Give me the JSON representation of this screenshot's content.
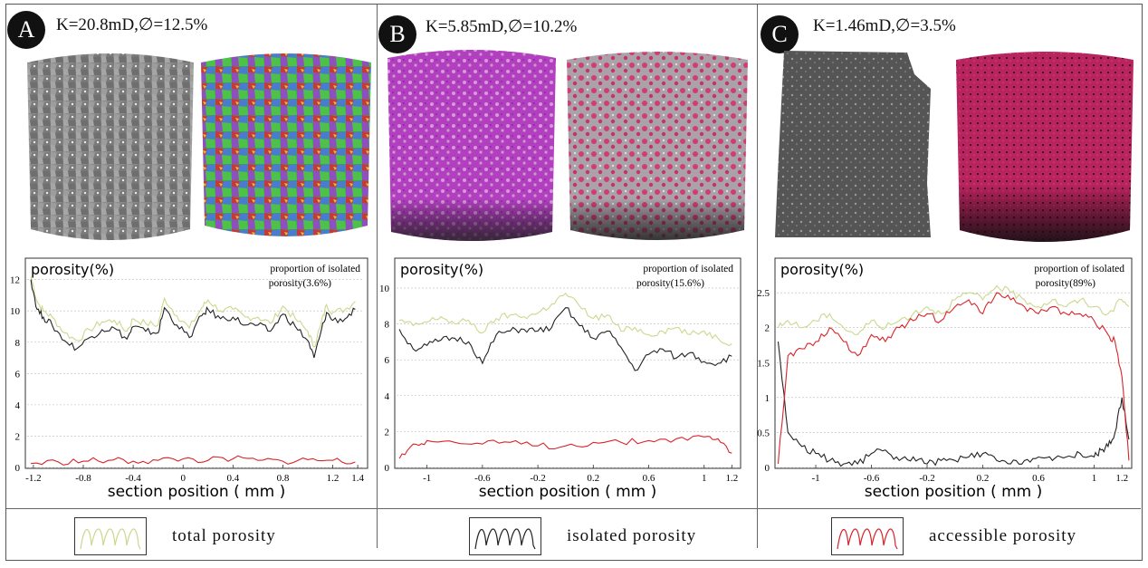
{
  "panels": [
    {
      "id": "A",
      "badge": "A",
      "title": "K=20.8mD,∅=12.5%"
    },
    {
      "id": "B",
      "badge": "B",
      "title": "K=5.85mD,∅=10.2%"
    },
    {
      "id": "C",
      "badge": "C",
      "title": "K=1.46mD,∅=3.5%"
    }
  ],
  "legend": [
    {
      "label": "total porosity",
      "color": "#c9d98e"
    },
    {
      "label": "isolated porosity",
      "color": "#222222"
    },
    {
      "label": "accessible porosity",
      "color": "#d9232a"
    }
  ],
  "colors": {
    "total": "#c9d98e",
    "isolated": "#222222",
    "accessible": "#d9232a"
  },
  "chart_data": [
    {
      "type": "line",
      "ylabel": "porosity(%)",
      "xlabel": "section position ( mm )",
      "annotation_line1": "proportion of isolated",
      "annotation_line2": "porosity(3.6%)",
      "xlim": [
        -1.25,
        1.45
      ],
      "ylim": [
        0,
        12.5
      ],
      "xticks": [
        -1.2,
        -0.8,
        -0.4,
        0,
        0.4,
        0.8,
        1.2,
        1.4
      ],
      "xtick_labels": [
        "-1.2",
        "-0.8",
        "-0.4",
        "0",
        "0.4",
        "0.8",
        "1.2",
        "1.4"
      ],
      "yticks": [
        0,
        2,
        4,
        6,
        8,
        10,
        12
      ],
      "ytick_labels": [
        "0",
        "2",
        "4",
        "6",
        "8",
        "10",
        "12"
      ],
      "series": [
        {
          "name": "total porosity",
          "key": "total",
          "x": [
            -1.22,
            -1.17,
            -1.12,
            -1.05,
            -0.95,
            -0.85,
            -0.75,
            -0.65,
            -0.55,
            -0.45,
            -0.4,
            -0.3,
            -0.2,
            -0.15,
            -0.05,
            0.05,
            0.15,
            0.2,
            0.3,
            0.4,
            0.5,
            0.6,
            0.7,
            0.8,
            0.9,
            1.0,
            1.05,
            1.1,
            1.15,
            1.2,
            1.3,
            1.38
          ],
          "y": [
            12.2,
            10.6,
            10.0,
            9.6,
            8.6,
            8.1,
            8.8,
            9.3,
            9.4,
            8.7,
            9.5,
            9.2,
            9.1,
            10.8,
            9.7,
            8.9,
            10.2,
            10.7,
            10.0,
            10.1,
            9.6,
            9.6,
            9.2,
            10.3,
            9.5,
            8.7,
            7.7,
            9.0,
            10.4,
            9.9,
            10.1,
            10.6
          ]
        },
        {
          "name": "isolated porosity",
          "key": "isolated",
          "x": [
            -1.22,
            -1.17,
            -1.12,
            -1.05,
            -0.95,
            -0.85,
            -0.75,
            -0.65,
            -0.55,
            -0.45,
            -0.4,
            -0.3,
            -0.2,
            -0.15,
            -0.05,
            0.05,
            0.15,
            0.2,
            0.3,
            0.4,
            0.5,
            0.6,
            0.7,
            0.8,
            0.9,
            1.0,
            1.05,
            1.1,
            1.15,
            1.2,
            1.3,
            1.38
          ],
          "y": [
            12.0,
            10.1,
            9.6,
            9.1,
            8.1,
            7.6,
            8.3,
            8.8,
            8.9,
            8.2,
            9.0,
            8.7,
            8.6,
            10.2,
            9.1,
            8.3,
            9.7,
            10.1,
            9.5,
            9.6,
            9.1,
            9.1,
            8.7,
            9.8,
            9.0,
            8.1,
            7.0,
            8.5,
            9.9,
            9.4,
            9.5,
            10.1
          ]
        },
        {
          "name": "accessible porosity",
          "key": "accessible",
          "x": [
            -1.22,
            -1.0,
            -0.8,
            -0.6,
            -0.4,
            -0.2,
            0,
            0.2,
            0.4,
            0.6,
            0.8,
            1.0,
            1.2,
            1.38
          ],
          "y": [
            0.25,
            0.35,
            0.4,
            0.45,
            0.4,
            0.45,
            0.55,
            0.45,
            0.55,
            0.45,
            0.4,
            0.5,
            0.45,
            0.35
          ]
        }
      ]
    },
    {
      "type": "line",
      "ylabel": "porosity(%)",
      "xlabel": "section position ( mm )",
      "annotation_line1": "proportion of isolated",
      "annotation_line2": "porosity(15.6%)",
      "xlim": [
        -1.22,
        1.25
      ],
      "ylim": [
        0,
        10.5
      ],
      "xticks": [
        -1,
        -0.6,
        -0.2,
        0.2,
        0.6,
        1,
        1.2
      ],
      "xtick_labels": [
        "-1",
        "-0.6",
        "-0.2",
        "0.2",
        "0.6",
        "1",
        "1.2"
      ],
      "yticks": [
        0,
        2,
        4,
        6,
        8,
        10
      ],
      "ytick_labels": [
        "0",
        "2",
        "4",
        "6",
        "8",
        "10"
      ],
      "series": [
        {
          "name": "total porosity",
          "key": "total",
          "x": [
            -1.2,
            -1.1,
            -1.0,
            -0.9,
            -0.8,
            -0.7,
            -0.6,
            -0.5,
            -0.4,
            -0.3,
            -0.2,
            -0.1,
            0.0,
            0.1,
            0.2,
            0.3,
            0.4,
            0.5,
            0.6,
            0.7,
            0.8,
            0.9,
            1.0,
            1.1,
            1.2
          ],
          "y": [
            8.2,
            7.9,
            8.1,
            8.4,
            8.0,
            8.2,
            7.5,
            8.3,
            8.5,
            8.4,
            8.6,
            9.1,
            9.7,
            9.0,
            8.3,
            8.5,
            7.6,
            7.8,
            7.4,
            7.6,
            7.8,
            7.4,
            7.6,
            7.2,
            6.9
          ]
        },
        {
          "name": "isolated porosity",
          "key": "isolated",
          "x": [
            -1.2,
            -1.1,
            -1.0,
            -0.9,
            -0.8,
            -0.7,
            -0.6,
            -0.5,
            -0.4,
            -0.3,
            -0.2,
            -0.1,
            0.0,
            0.1,
            0.2,
            0.3,
            0.4,
            0.5,
            0.6,
            0.7,
            0.8,
            0.9,
            1.0,
            1.1,
            1.2
          ],
          "y": [
            7.7,
            6.6,
            6.8,
            7.1,
            7.2,
            7.0,
            5.8,
            7.4,
            7.6,
            7.7,
            7.6,
            7.8,
            8.9,
            7.9,
            7.2,
            7.6,
            6.7,
            5.4,
            6.3,
            6.6,
            6.1,
            6.4,
            5.9,
            5.8,
            6.2
          ]
        },
        {
          "name": "accessible porosity",
          "key": "accessible",
          "x": [
            -1.2,
            -1.1,
            -1.0,
            -0.8,
            -0.6,
            -0.4,
            -0.2,
            0,
            0.2,
            0.4,
            0.6,
            0.8,
            1.0,
            1.1,
            1.2
          ],
          "y": [
            0.5,
            1.3,
            1.5,
            1.4,
            1.3,
            1.4,
            1.2,
            1.2,
            1.4,
            1.4,
            1.5,
            1.6,
            1.7,
            1.6,
            0.8
          ]
        }
      ]
    },
    {
      "type": "line",
      "ylabel": "porosity(%)",
      "xlabel": "section position ( mm )",
      "annotation_line1": "proportion of isolated",
      "annotation_line2": "porosity(89%)",
      "xlim": [
        -1.28,
        1.27
      ],
      "ylim": [
        0,
        2.8
      ],
      "xticks": [
        -1,
        -0.6,
        -0.2,
        0.2,
        0.6,
        1,
        1.2
      ],
      "xtick_labels": [
        "-1",
        "-0.6",
        "-0.2",
        "0.2",
        "0.6",
        "1",
        "1.2"
      ],
      "yticks": [
        0,
        0.5,
        1,
        1.5,
        2,
        2.5
      ],
      "ytick_labels": [
        "0",
        "0.5",
        "1",
        "1.5",
        "2",
        "2.5"
      ],
      "series": [
        {
          "name": "total porosity",
          "key": "total",
          "x": [
            -1.27,
            -1.2,
            -1.1,
            -1.0,
            -0.9,
            -0.8,
            -0.7,
            -0.6,
            -0.5,
            -0.4,
            -0.3,
            -0.2,
            -0.1,
            0.0,
            0.1,
            0.2,
            0.3,
            0.4,
            0.5,
            0.6,
            0.7,
            0.8,
            0.9,
            1.0,
            1.1,
            1.2,
            1.25
          ],
          "y": [
            2.0,
            2.1,
            2.0,
            2.1,
            2.2,
            2.0,
            1.9,
            2.1,
            2.0,
            2.1,
            2.2,
            2.3,
            2.2,
            2.4,
            2.5,
            2.4,
            2.6,
            2.5,
            2.4,
            2.3,
            2.4,
            2.3,
            2.4,
            2.3,
            2.2,
            2.4,
            2.3
          ]
        },
        {
          "name": "isolated porosity",
          "key": "isolated",
          "x": [
            -1.27,
            -1.2,
            -1.1,
            -1.0,
            -0.9,
            -0.8,
            -0.7,
            -0.6,
            -0.5,
            -0.4,
            -0.3,
            -0.2,
            -0.1,
            0.0,
            0.1,
            0.2,
            0.3,
            0.4,
            0.5,
            0.6,
            0.7,
            0.8,
            0.9,
            1.0,
            1.05,
            1.1,
            1.15,
            1.2,
            1.25
          ],
          "y": [
            1.8,
            0.5,
            0.3,
            0.2,
            0.1,
            0.05,
            0.05,
            0.2,
            0.25,
            0.1,
            0.15,
            0.05,
            0.1,
            0.1,
            0.15,
            0.2,
            0.1,
            0.05,
            0.1,
            0.15,
            0.1,
            0.15,
            0.2,
            0.15,
            0.25,
            0.3,
            0.5,
            1.0,
            0.4
          ]
        },
        {
          "name": "accessible porosity",
          "key": "accessible",
          "x": [
            -1.27,
            -1.2,
            -1.1,
            -1.0,
            -0.9,
            -0.8,
            -0.7,
            -0.6,
            -0.5,
            -0.4,
            -0.3,
            -0.2,
            -0.1,
            0.0,
            0.1,
            0.2,
            0.3,
            0.4,
            0.5,
            0.6,
            0.7,
            0.8,
            0.9,
            1.0,
            1.1,
            1.15,
            1.2,
            1.25
          ],
          "y": [
            0.05,
            1.6,
            1.7,
            1.8,
            2.0,
            1.8,
            1.6,
            1.9,
            1.8,
            2.0,
            2.1,
            2.2,
            2.1,
            2.3,
            2.4,
            2.2,
            2.5,
            2.4,
            2.3,
            2.2,
            2.3,
            2.2,
            2.2,
            2.1,
            1.9,
            1.8,
            1.3,
            0.1
          ]
        }
      ]
    }
  ]
}
